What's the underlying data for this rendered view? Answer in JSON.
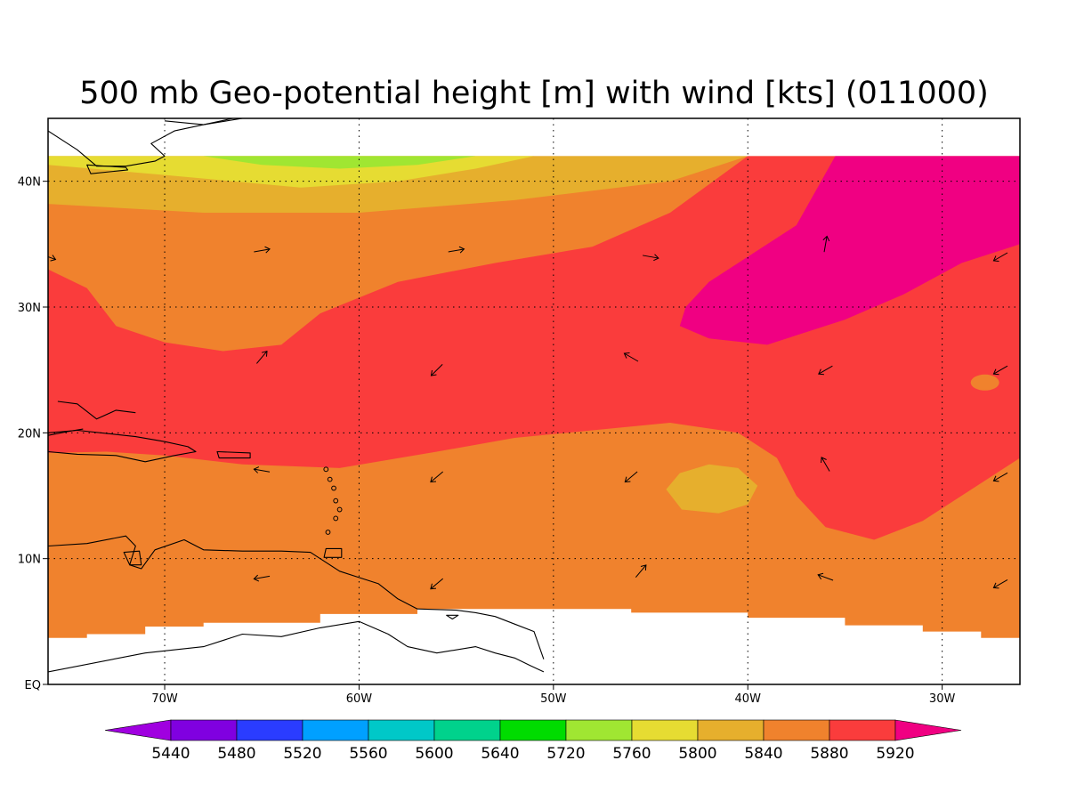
{
  "title": "500 mb Geo-potential height [m] with wind [kts] (011000)",
  "map": {
    "lon_range": [
      -76,
      -26
    ],
    "lat_range": [
      0,
      45
    ],
    "data_lat_max": 42,
    "lon_ticks": [
      {
        "value": -70,
        "label": "70W"
      },
      {
        "value": -60,
        "label": "60W"
      },
      {
        "value": -50,
        "label": "50W"
      },
      {
        "value": -40,
        "label": "40W"
      },
      {
        "value": -30,
        "label": "30W"
      }
    ],
    "lat_ticks": [
      {
        "value": 0,
        "label": "EQ"
      },
      {
        "value": 10,
        "label": "10N"
      },
      {
        "value": 20,
        "label": "20N"
      },
      {
        "value": 30,
        "label": "30N"
      },
      {
        "value": 40,
        "label": "40N"
      }
    ],
    "grid": true
  },
  "colorbar": {
    "bins": [
      {
        "color": "#a000e0"
      },
      {
        "color": "#8000e0"
      },
      {
        "color": "#2a3cff"
      },
      {
        "color": "#00a0ff"
      },
      {
        "color": "#00c8c8"
      },
      {
        "color": "#00d28c"
      },
      {
        "color": "#00dc00"
      },
      {
        "color": "#a0e632"
      },
      {
        "color": "#e6dc32"
      },
      {
        "color": "#e6af2d"
      },
      {
        "color": "#f0822d"
      },
      {
        "color": "#fa3c3c"
      },
      {
        "color": "#f00082"
      }
    ],
    "labels": [
      "5440",
      "5480",
      "5520",
      "5560",
      "5600",
      "5640",
      "5720",
      "5760",
      "5800",
      "5840",
      "5880",
      "5920"
    ]
  },
  "colors": {
    "c5720": "#a0e632",
    "c5760": "#e6dc32",
    "c5800": "#e6af2d",
    "c5840": "#f0822d",
    "c5880": "#fa3c3c",
    "c5920": "#f00082",
    "land_outline": "#000000"
  },
  "wind_vectors": [
    {
      "lon": -76,
      "lat": 34,
      "dir_deg": 110
    },
    {
      "lon": -65,
      "lat": 34.5,
      "dir_deg": 80
    },
    {
      "lon": -55,
      "lat": 34.5,
      "dir_deg": 80
    },
    {
      "lon": -45,
      "lat": 34,
      "dir_deg": 100
    },
    {
      "lon": -36,
      "lat": 35,
      "dir_deg": 10
    },
    {
      "lon": -27,
      "lat": 34,
      "dir_deg": 240
    },
    {
      "lon": -65,
      "lat": 26,
      "dir_deg": 40
    },
    {
      "lon": -56,
      "lat": 25,
      "dir_deg": 225
    },
    {
      "lon": -46,
      "lat": 26,
      "dir_deg": 300
    },
    {
      "lon": -36,
      "lat": 25,
      "dir_deg": 240
    },
    {
      "lon": -27,
      "lat": 25,
      "dir_deg": 240
    },
    {
      "lon": -65,
      "lat": 17,
      "dir_deg": 280
    },
    {
      "lon": -56,
      "lat": 16.5,
      "dir_deg": 230
    },
    {
      "lon": -46,
      "lat": 16.5,
      "dir_deg": 230
    },
    {
      "lon": -36,
      "lat": 17.5,
      "dir_deg": 330
    },
    {
      "lon": -27,
      "lat": 16.5,
      "dir_deg": 240
    },
    {
      "lon": -65,
      "lat": 8.5,
      "dir_deg": 260
    },
    {
      "lon": -56,
      "lat": 8,
      "dir_deg": 230
    },
    {
      "lon": -45.5,
      "lat": 9,
      "dir_deg": 40
    },
    {
      "lon": -36,
      "lat": 8.5,
      "dir_deg": 290
    },
    {
      "lon": -27,
      "lat": 8,
      "dir_deg": 240
    }
  ]
}
